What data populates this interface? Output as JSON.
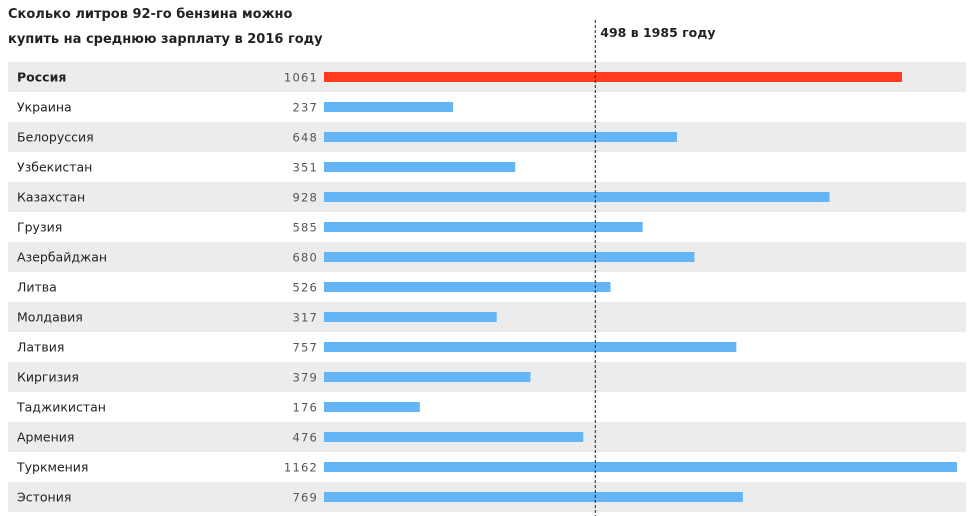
{
  "title": "Сколько литров 92-го бензина можно купить на среднюю зарплату в 2016 году",
  "colors": {
    "bar": "#64b5f6",
    "highlight_bar": "#ff3b1f",
    "row_stripe": "#ececec",
    "reference_line": "#222222"
  },
  "chart_data": {
    "type": "bar",
    "orientation": "horizontal",
    "title": "Сколько литров 92-го бензина можно купить на среднюю зарплату в 2016 году",
    "categories": [
      "Россия",
      "Украина",
      "Белоруссия",
      "Узбекистан",
      "Казахстан",
      "Грузия",
      "Азербайджан",
      "Литва",
      "Молдавия",
      "Латвия",
      "Киргизия",
      "Таджикистан",
      "Армения",
      "Туркмения",
      "Эстония"
    ],
    "values": [
      1061,
      237,
      648,
      351,
      928,
      585,
      680,
      526,
      317,
      757,
      379,
      176,
      476,
      1162,
      769
    ],
    "highlight": "Россия",
    "reference": {
      "value": 498,
      "label": "498 в 1985 году"
    },
    "xlim": [
      0,
      1162
    ],
    "grid": false,
    "legend": "none"
  }
}
